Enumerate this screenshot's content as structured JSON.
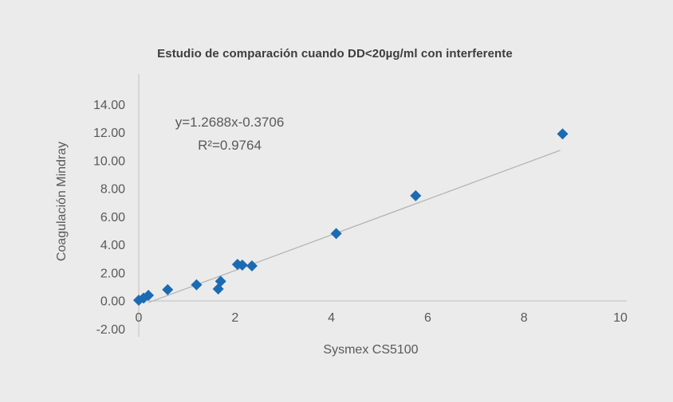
{
  "page": {
    "background_color": "#ebebeb"
  },
  "chart_data": {
    "type": "scatter",
    "title": "Estudio de comparación cuando DD<20µg/ml con interferente",
    "xlabel": "Sysmex CS5100",
    "ylabel": "Coagulación Mindray",
    "xlim": [
      0,
      10
    ],
    "ylim": [
      -2,
      16
    ],
    "x_tick_labels": [
      "0",
      "2",
      "4",
      "6",
      "8",
      "10"
    ],
    "y_tick_labels": [
      "14.00",
      "12.00",
      "10.00",
      "8.00",
      "6.00",
      "4.00",
      "2.00",
      "0.00",
      "-2.00"
    ],
    "grid": "off",
    "legend": "none",
    "marker": {
      "shape": "diamond",
      "color": "#1b6bb3",
      "half_size": 7
    },
    "points": [
      [
        0.0,
        0.05
      ],
      [
        0.1,
        0.2
      ],
      [
        0.2,
        0.4
      ],
      [
        0.6,
        0.8
      ],
      [
        1.2,
        1.15
      ],
      [
        1.65,
        0.85
      ],
      [
        1.7,
        1.4
      ],
      [
        2.05,
        2.6
      ],
      [
        2.15,
        2.55
      ],
      [
        2.35,
        2.5
      ],
      [
        4.1,
        4.8
      ],
      [
        5.75,
        7.5
      ],
      [
        8.8,
        11.9
      ]
    ],
    "trendline": {
      "equation": "y=1.2688x-0.3706",
      "r_squared_label": "R²=0.9764",
      "slope": 1.2688,
      "intercept": -0.3706,
      "x_range": [
        0.2,
        8.75
      ],
      "color": "#b5b5b5"
    },
    "colors": {
      "axis": "#c8c8c8",
      "tick_text": "#595959",
      "title_text": "#3d3d3d"
    }
  }
}
